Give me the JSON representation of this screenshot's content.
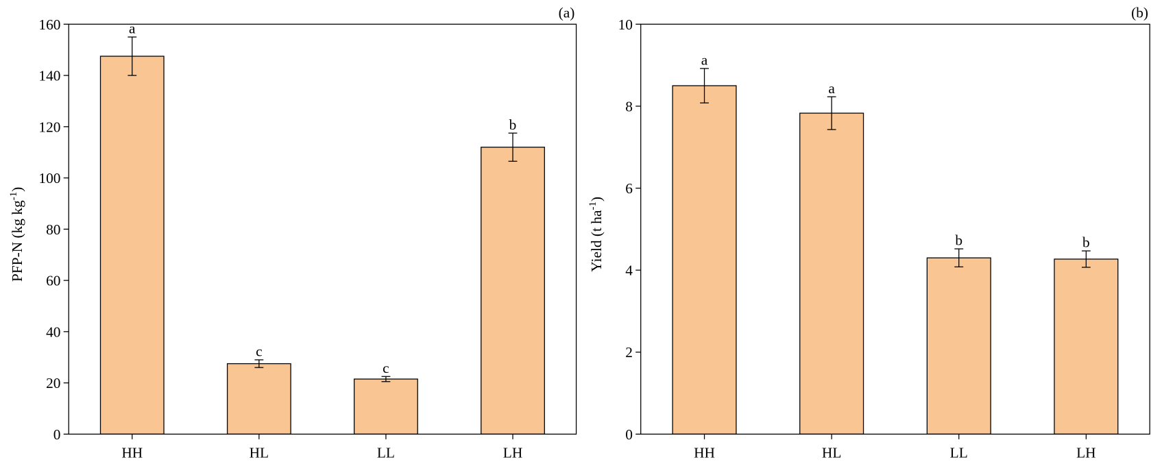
{
  "chart_data": [
    {
      "type": "bar",
      "panel_label": "(a)",
      "ylabel": [
        "PFP-N (kg kg",
        "-1",
        ")"
      ],
      "categories": [
        "HH",
        "HL",
        "LL",
        "LH"
      ],
      "values": [
        147.5,
        27.5,
        21.5,
        112
      ],
      "errors": [
        7.5,
        1.5,
        1,
        5.5
      ],
      "annotations": [
        "a",
        "c",
        "c",
        "b"
      ],
      "color": "#f9c592",
      "ylim": [
        0,
        160
      ],
      "yticks": [
        0,
        20,
        40,
        60,
        80,
        100,
        120,
        140,
        160
      ]
    },
    {
      "type": "bar",
      "panel_label": "(b)",
      "ylabel": [
        "Yield (t ha",
        "-1",
        ")"
      ],
      "categories": [
        "HH",
        "HL",
        "LL",
        "LH"
      ],
      "values": [
        8.5,
        7.83,
        4.3,
        4.27
      ],
      "errors": [
        0.42,
        0.4,
        0.22,
        0.2
      ],
      "annotations": [
        "a",
        "a",
        "b",
        "b"
      ],
      "color": "#f9c592",
      "ylim": [
        0,
        10
      ],
      "yticks": [
        0,
        2,
        4,
        6,
        8,
        10
      ]
    }
  ]
}
